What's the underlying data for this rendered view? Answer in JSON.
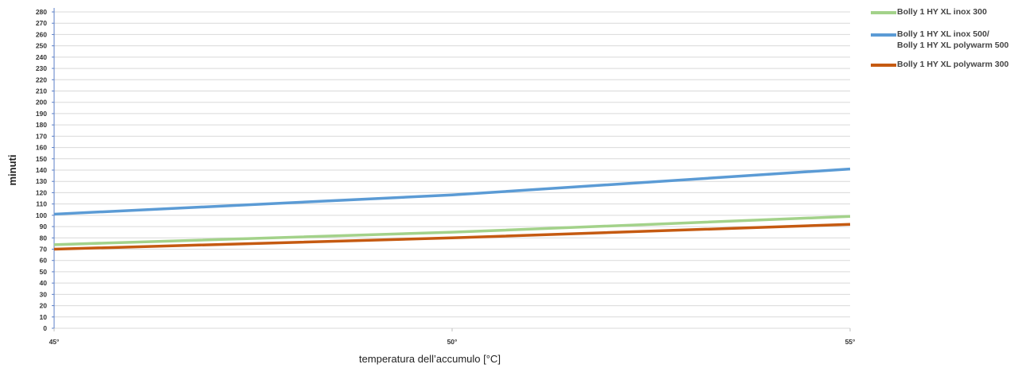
{
  "chart_data": {
    "type": "line",
    "x": [
      "45°",
      "50°",
      "55°"
    ],
    "xlabel": "temperatura dell’accumulo [°C]",
    "ylabel": "minuti",
    "ylim": [
      0,
      280
    ],
    "yticks": [
      0,
      10,
      20,
      30,
      40,
      50,
      60,
      70,
      80,
      90,
      100,
      110,
      120,
      130,
      140,
      150,
      160,
      170,
      180,
      190,
      200,
      210,
      220,
      230,
      240,
      250,
      260,
      270,
      280
    ],
    "grid": true,
    "legend_position": "top-right",
    "series": [
      {
        "name": "Bolly 1 HY XL inox 300",
        "color": "#a3d28a",
        "values": [
          74,
          85,
          99
        ]
      },
      {
        "name": "Bolly 1 HY XL inox 500/\nBolly 1 HY XL polywarm 500",
        "color": "#5b9bd5",
        "values": [
          101,
          118,
          141
        ]
      },
      {
        "name": "Bolly 1 HY XL polywarm 300",
        "color": "#c55a11",
        "values": [
          70,
          80,
          92
        ]
      }
    ]
  }
}
